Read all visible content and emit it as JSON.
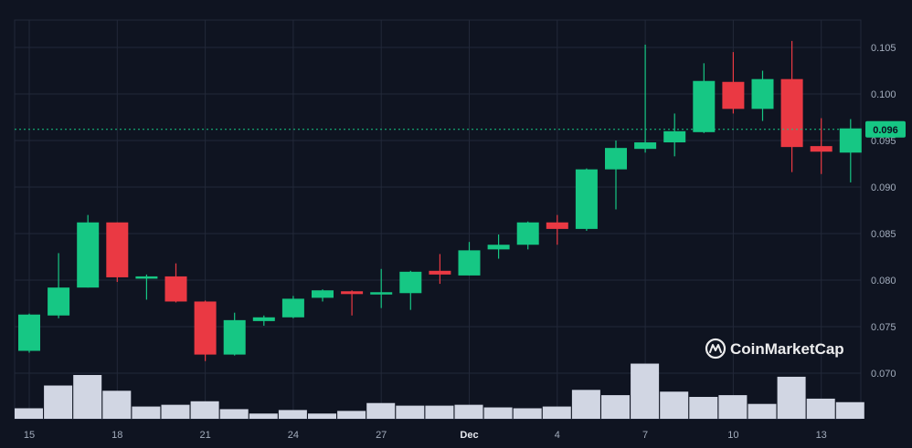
{
  "chart_data": {
    "type": "candlestick",
    "y_axis": {
      "ticks": [
        "0.105",
        "0.100",
        "0.095",
        "0.090",
        "0.085",
        "0.080",
        "0.075",
        "0.070"
      ],
      "range": [
        0.0655,
        0.1085
      ],
      "position": "right"
    },
    "x_axis": {
      "ticks": [
        "15",
        "18",
        "21",
        "24",
        "27",
        "Dec",
        "4",
        "7",
        "10",
        "13"
      ]
    },
    "current_price": {
      "label": "0.096",
      "value": 0.0962,
      "color": "#16c784"
    },
    "colors": {
      "up": "#16c784",
      "down": "#ea3943",
      "volume": "#d1d6e3",
      "grid": "#222839",
      "background": "#0f1421"
    },
    "grid": true,
    "candles": [
      {
        "date": "Nov 15",
        "open": 0.0724,
        "high": 0.0764,
        "low": 0.0722,
        "close": 0.0763
      },
      {
        "date": "Nov 16",
        "open": 0.0762,
        "high": 0.0829,
        "low": 0.0759,
        "close": 0.0792
      },
      {
        "date": "Nov 17",
        "open": 0.0792,
        "high": 0.087,
        "low": 0.0792,
        "close": 0.0862
      },
      {
        "date": "Nov 18",
        "open": 0.0862,
        "high": 0.0862,
        "low": 0.0798,
        "close": 0.0803
      },
      {
        "date": "Nov 19",
        "open": 0.0804,
        "high": 0.0806,
        "low": 0.0779,
        "close": 0.0804
      },
      {
        "date": "Nov 20",
        "open": 0.0804,
        "high": 0.0818,
        "low": 0.0776,
        "close": 0.0777
      },
      {
        "date": "Nov 21",
        "open": 0.0777,
        "high": 0.0778,
        "low": 0.0713,
        "close": 0.072
      },
      {
        "date": "Nov 22",
        "open": 0.072,
        "high": 0.0765,
        "low": 0.0719,
        "close": 0.0757
      },
      {
        "date": "Nov 23",
        "open": 0.0756,
        "high": 0.0762,
        "low": 0.0751,
        "close": 0.076
      },
      {
        "date": "Nov 24",
        "open": 0.076,
        "high": 0.0783,
        "low": 0.0759,
        "close": 0.078
      },
      {
        "date": "Nov 25",
        "open": 0.0781,
        "high": 0.079,
        "low": 0.0777,
        "close": 0.0789
      },
      {
        "date": "Nov 26",
        "open": 0.0788,
        "high": 0.0789,
        "low": 0.0762,
        "close": 0.0785
      },
      {
        "date": "Nov 27",
        "open": 0.0786,
        "high": 0.0812,
        "low": 0.077,
        "close": 0.0787
      },
      {
        "date": "Nov 28",
        "open": 0.0786,
        "high": 0.081,
        "low": 0.0768,
        "close": 0.0809
      },
      {
        "date": "Nov 29",
        "open": 0.081,
        "high": 0.0828,
        "low": 0.0796,
        "close": 0.0806
      },
      {
        "date": "Nov 30",
        "open": 0.0805,
        "high": 0.0841,
        "low": 0.0805,
        "close": 0.0832
      },
      {
        "date": "Dec 1",
        "open": 0.0833,
        "high": 0.0849,
        "low": 0.0823,
        "close": 0.0838
      },
      {
        "date": "Dec 2",
        "open": 0.0838,
        "high": 0.0863,
        "low": 0.0833,
        "close": 0.0862
      },
      {
        "date": "Dec 3",
        "open": 0.0862,
        "high": 0.087,
        "low": 0.0838,
        "close": 0.0855
      },
      {
        "date": "Dec 4",
        "open": 0.0855,
        "high": 0.092,
        "low": 0.0853,
        "close": 0.0919
      },
      {
        "date": "Dec 5",
        "open": 0.0919,
        "high": 0.095,
        "low": 0.0876,
        "close": 0.0942
      },
      {
        "date": "Dec 6",
        "open": 0.0941,
        "high": 0.1053,
        "low": 0.0937,
        "close": 0.0948
      },
      {
        "date": "Dec 7",
        "open": 0.0948,
        "high": 0.0979,
        "low": 0.0933,
        "close": 0.096
      },
      {
        "date": "Dec 8",
        "open": 0.0959,
        "high": 0.1033,
        "low": 0.0958,
        "close": 0.1014
      },
      {
        "date": "Dec 9",
        "open": 0.1013,
        "high": 0.1045,
        "low": 0.0979,
        "close": 0.0984
      },
      {
        "date": "Dec 10",
        "open": 0.0984,
        "high": 0.1025,
        "low": 0.0971,
        "close": 0.1016
      },
      {
        "date": "Dec 11",
        "open": 0.1016,
        "high": 0.1057,
        "low": 0.0916,
        "close": 0.0943
      },
      {
        "date": "Dec 12",
        "open": 0.0944,
        "high": 0.0974,
        "low": 0.0914,
        "close": 0.0938
      },
      {
        "date": "Dec 13",
        "open": 0.0937,
        "high": 0.0973,
        "low": 0.0905,
        "close": 0.0963
      }
    ],
    "volume_relative": [
      0.24,
      0.76,
      1.0,
      0.64,
      0.28,
      0.32,
      0.4,
      0.22,
      0.12,
      0.2,
      0.12,
      0.18,
      0.36,
      0.3,
      0.3,
      0.32,
      0.26,
      0.24,
      0.28,
      0.66,
      0.54,
      1.26,
      0.62,
      0.5,
      0.54,
      0.34,
      0.96,
      0.46,
      0.38
    ]
  },
  "watermark": {
    "text": "CoinMarketCap",
    "icon": "coinmarketcap-logo-icon"
  }
}
